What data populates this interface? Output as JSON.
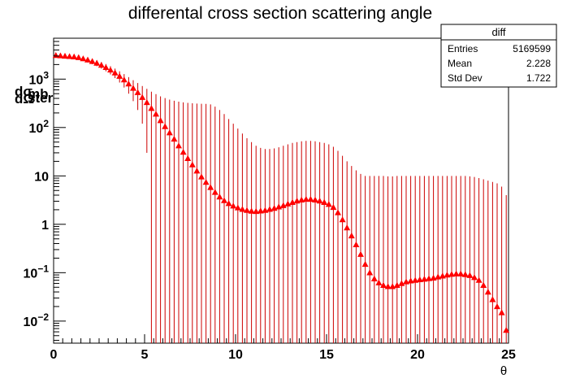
{
  "chart_data": {
    "type": "scatter",
    "title": "differental cross section scattering angle",
    "xlabel": "θ",
    "ylabel": {
      "num_d": "dσ",
      "den_d": "dΩ",
      "num_unit": "mb",
      "den_unit": "ster"
    },
    "xlim": [
      0,
      25
    ],
    "ylim_log": [
      0.0035,
      7000
    ],
    "y_scale": "log",
    "x_ticks": [
      {
        "value": 0,
        "label": "0"
      },
      {
        "value": 5,
        "label": "5"
      },
      {
        "value": 10,
        "label": "10"
      },
      {
        "value": 15,
        "label": "15"
      },
      {
        "value": 20,
        "label": "20"
      },
      {
        "value": 25,
        "label": "25"
      }
    ],
    "y_ticks": [
      {
        "value": 0.01,
        "base": "10",
        "exp": "−2"
      },
      {
        "value": 0.1,
        "base": "10",
        "exp": "−1"
      },
      {
        "value": 1,
        "base": "1",
        "exp": ""
      },
      {
        "value": 10,
        "base": "10",
        "exp": ""
      },
      {
        "value": 100,
        "base": "10",
        "exp": "2"
      },
      {
        "value": 1000,
        "base": "10",
        "exp": "3"
      }
    ],
    "marker_color": "#ff0000",
    "error_color": "#cc0000",
    "series": [
      {
        "x": [
          0.125,
          0.375,
          0.625,
          0.875,
          1.125,
          1.375,
          1.625,
          1.875,
          2.125,
          2.375,
          2.625,
          2.875,
          3.125,
          3.375,
          3.625,
          3.875,
          4.125,
          4.375,
          4.625,
          4.875,
          5.125,
          5.375,
          5.625,
          5.875,
          6.125,
          6.375,
          6.625,
          6.875,
          7.125,
          7.375,
          7.625,
          7.875,
          8.125,
          8.375,
          8.625,
          8.875,
          9.125,
          9.375,
          9.625,
          9.875,
          10.125,
          10.375,
          10.625,
          10.875,
          11.125,
          11.375,
          11.625,
          11.875,
          12.125,
          12.375,
          12.625,
          12.875,
          13.125,
          13.375,
          13.625,
          13.875,
          14.125,
          14.375,
          14.625,
          14.875,
          15.125,
          15.375,
          15.625,
          15.875,
          16.125,
          16.375,
          16.625,
          16.875,
          17.125,
          17.375,
          17.625,
          17.875,
          18.125,
          18.375,
          18.625,
          18.875,
          19.125,
          19.375,
          19.625,
          19.875,
          20.125,
          20.375,
          20.625,
          20.875,
          21.125,
          21.375,
          21.625,
          21.875,
          22.125,
          22.375,
          22.625,
          22.875,
          23.125,
          23.375,
          23.625,
          23.875,
          24.125,
          24.375,
          24.625,
          24.875
        ],
        "y": [
          3100,
          3050,
          3000,
          2950,
          2900,
          2800,
          2650,
          2500,
          2330,
          2150,
          1950,
          1750,
          1550,
          1350,
          1150,
          970,
          800,
          650,
          530,
          420,
          330,
          250,
          190,
          140,
          105,
          78,
          58,
          42,
          31,
          23,
          17,
          12.7,
          9.6,
          7.4,
          5.8,
          4.6,
          3.7,
          3.1,
          2.7,
          2.4,
          2.2,
          2.05,
          1.95,
          1.88,
          1.85,
          1.9,
          1.95,
          2.05,
          2.15,
          2.3,
          2.45,
          2.65,
          2.85,
          3.05,
          3.2,
          3.3,
          3.3,
          3.2,
          3.05,
          2.85,
          2.6,
          2.25,
          1.75,
          1.25,
          0.85,
          0.58,
          0.38,
          0.24,
          0.15,
          0.1,
          0.075,
          0.062,
          0.055,
          0.052,
          0.052,
          0.055,
          0.06,
          0.065,
          0.068,
          0.07,
          0.072,
          0.074,
          0.076,
          0.078,
          0.082,
          0.086,
          0.09,
          0.093,
          0.095,
          0.095,
          0.092,
          0.088,
          0.08,
          0.07,
          0.055,
          0.04,
          0.028,
          0.02,
          0.015,
          0.0065
        ],
        "y_err_upper": [
          3400,
          3350,
          3300,
          3250,
          3200,
          3100,
          2950,
          2800,
          2630,
          2450,
          2250,
          2050,
          1850,
          1650,
          1450,
          1270,
          1100,
          950,
          830,
          720,
          630,
          550,
          490,
          440,
          405,
          378,
          358,
          342,
          331,
          323,
          317,
          312.7,
          309.6,
          307.4,
          300,
          270,
          230,
          190,
          150,
          120,
          95,
          75,
          60,
          50,
          42,
          38,
          36,
          36,
          37,
          39,
          42,
          45,
          48,
          50,
          52,
          53,
          53,
          52,
          50,
          48,
          45,
          40,
          33,
          26,
          20,
          16,
          13,
          11,
          10,
          10,
          10,
          10,
          10,
          9.8,
          9.8,
          10,
          10,
          10,
          10,
          10,
          10,
          10,
          10,
          10,
          10,
          10,
          10,
          10,
          10,
          10,
          10,
          9.8,
          9.5,
          9,
          8.5,
          8,
          7.5,
          7,
          6,
          4
        ],
        "y_err_lower": [
          2800,
          2750,
          2700,
          2650,
          2600,
          2500,
          2350,
          2200,
          2030,
          1850,
          1650,
          1450,
          1250,
          1050,
          850,
          670,
          500,
          350,
          230,
          120,
          30,
          "floor",
          "floor",
          "floor",
          "floor",
          "floor",
          "floor",
          "floor",
          "floor",
          "floor",
          "floor",
          "floor",
          "floor",
          "floor",
          "floor",
          "floor",
          "floor",
          "floor",
          "floor",
          "floor",
          "floor",
          "floor",
          "floor",
          "floor",
          "floor",
          "floor",
          "floor",
          "floor",
          "floor",
          "floor",
          "floor",
          "floor",
          "floor",
          "floor",
          "floor",
          "floor",
          "floor",
          "floor",
          "floor",
          "floor",
          "floor",
          "floor",
          "floor",
          "floor",
          "floor",
          "floor",
          "floor",
          "floor",
          "floor",
          "floor",
          "floor",
          "floor",
          "floor",
          "floor",
          "floor",
          "floor",
          "floor",
          "floor",
          "floor",
          "floor",
          "floor",
          "floor",
          "floor",
          "floor",
          "floor",
          "floor",
          "floor",
          "floor",
          "floor",
          "floor",
          "floor",
          "floor",
          "floor",
          "floor",
          "floor",
          "floor",
          "floor",
          "floor",
          "floor",
          "floor"
        ]
      }
    ]
  },
  "stats_box": {
    "name": "diff",
    "rows": [
      {
        "label": "Entries",
        "value": "5169599"
      },
      {
        "label": "Mean",
        "value": "2.228"
      },
      {
        "label": "Std Dev",
        "value": "1.722"
      }
    ]
  }
}
